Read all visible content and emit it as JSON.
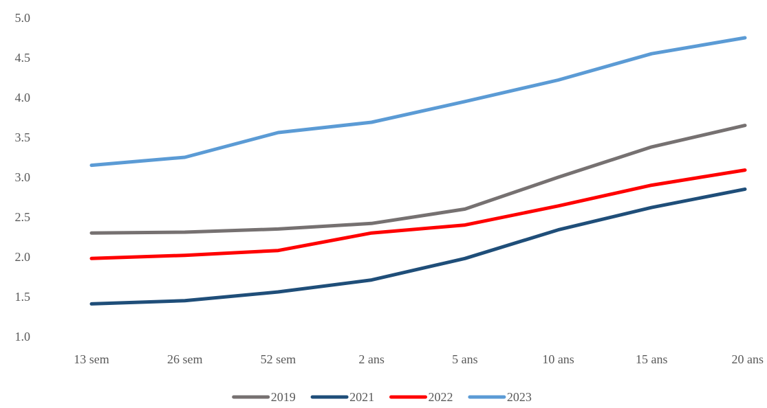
{
  "chart_data": {
    "type": "line",
    "title": "",
    "xlabel": "",
    "ylabel": "",
    "categories": [
      "13 sem",
      "26 sem",
      "52 sem",
      "2 ans",
      "5 ans",
      "10 ans",
      "15 ans",
      "20 ans"
    ],
    "ylim": [
      1.0,
      5.0
    ],
    "yticks": [
      "1.0",
      "1.5",
      "2.0",
      "2.5",
      "3.0",
      "3.5",
      "4.0",
      "4.5",
      "5.0"
    ],
    "grid": false,
    "legend_position": "bottom",
    "series": [
      {
        "name": "2019",
        "color": "#767171",
        "values": [
          2.3,
          2.31,
          2.35,
          2.42,
          2.6,
          3.0,
          3.38,
          3.65
        ]
      },
      {
        "name": "2021",
        "color": "#1F4E79",
        "values": [
          1.41,
          1.45,
          1.56,
          1.71,
          1.98,
          2.34,
          2.62,
          2.85
        ]
      },
      {
        "name": "2022",
        "color": "#FF0000",
        "values": [
          1.98,
          2.02,
          2.08,
          2.3,
          2.4,
          2.64,
          2.9,
          3.09
        ]
      },
      {
        "name": "2023",
        "color": "#5B9BD5",
        "values": [
          3.15,
          3.25,
          3.56,
          3.69,
          3.95,
          4.22,
          4.55,
          4.75
        ]
      }
    ]
  }
}
